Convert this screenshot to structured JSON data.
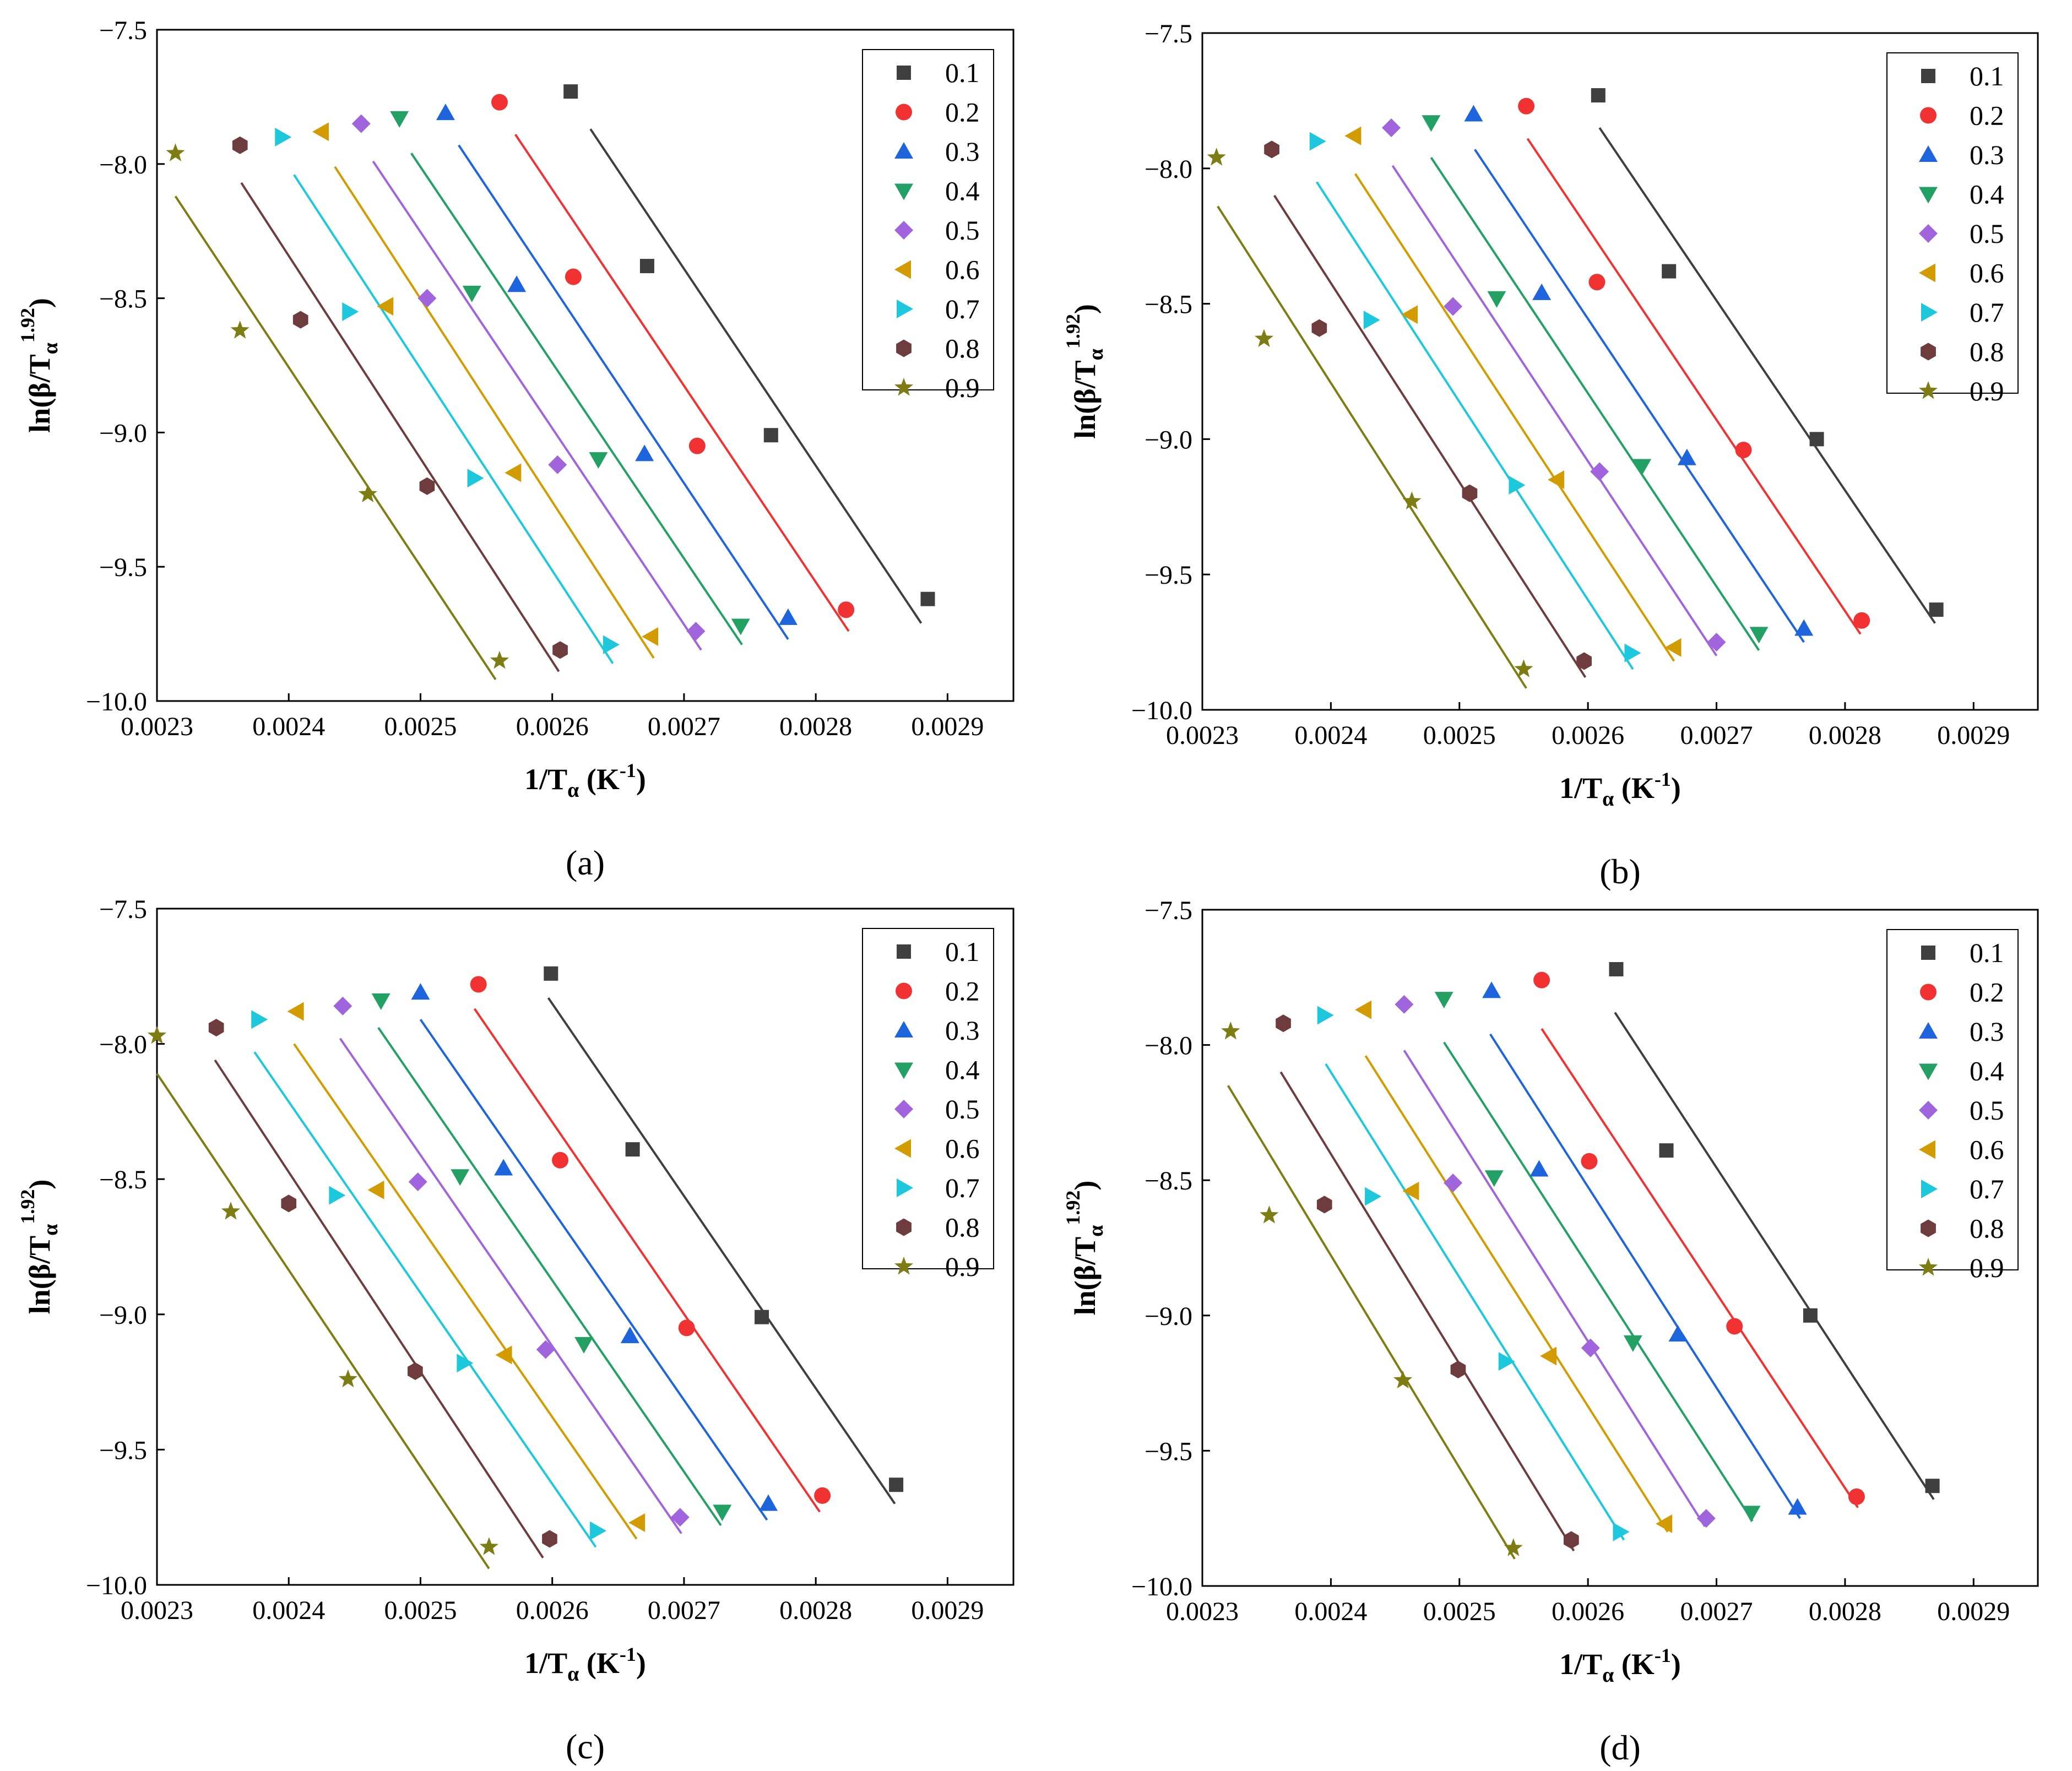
{
  "figure": {
    "subtitle_prefix": "(",
    "subtitle_suffix": ")"
  },
  "series_colors": [
    "#3f3f3f",
    "#f03232",
    "#1e64dc",
    "#23a064",
    "#a064dc",
    "#d29b00",
    "#1ec8dc",
    "#6e3c3c",
    "#7d7d14"
  ],
  "series_markers": [
    "square",
    "circle",
    "triangle-up",
    "triangle-down",
    "diamond",
    "triangle-left",
    "triangle-right",
    "hexagon",
    "star"
  ],
  "chart_data": [
    {
      "type": "scatter",
      "panel": "a",
      "xlabel_main": "1/T",
      "xlabel_sub": "α",
      "xlabel_unit": " (K",
      "xlabel_unit_sup": "-1",
      "xlabel_end": ")",
      "ylabel_main": "ln(β/T",
      "ylabel_sub": "α",
      "ylabel_sup": "1.92",
      "ylabel_end": ")",
      "xlim": [
        0.0023,
        0.00295
      ],
      "ylim": [
        -10.0,
        -7.5
      ],
      "xticks": [
        "0.0023",
        "0.0024",
        "0.0025",
        "0.0026",
        "0.0027",
        "0.0028",
        "0.0029"
      ],
      "yticks": [
        "-7.5",
        "-8.0",
        "-8.5",
        "-9.0",
        "-9.5",
        "-10.0"
      ],
      "series": [
        {
          "name": "0.1",
          "x": [
            0.002614,
            0.002672,
            0.002766,
            0.002885
          ],
          "y": [
            -7.73,
            -8.38,
            -9.01,
            -9.62
          ],
          "fit": [
            [
              0.002629,
              -7.87
            ],
            [
              0.00288,
              -9.71
            ]
          ]
        },
        {
          "name": "0.2",
          "x": [
            0.00256,
            0.002616,
            0.00271,
            0.002823
          ],
          "y": [
            -7.77,
            -8.42,
            -9.05,
            -9.66
          ],
          "fit": [
            [
              0.002572,
              -7.89
            ],
            [
              0.002825,
              -9.74
            ]
          ]
        },
        {
          "name": "0.3",
          "x": [
            0.002519,
            0.002573,
            0.00267,
            0.002779
          ],
          "y": [
            -7.81,
            -8.45,
            -9.08,
            -9.69
          ],
          "fit": [
            [
              0.002529,
              -7.93
            ],
            [
              0.002779,
              -9.77
            ]
          ]
        },
        {
          "name": "0.4",
          "x": [
            0.002484,
            0.002539,
            0.002635,
            0.002743
          ],
          "y": [
            -7.83,
            -8.48,
            -9.1,
            -9.72
          ],
          "fit": [
            [
              0.002493,
              -7.96
            ],
            [
              0.002744,
              -9.79
            ]
          ]
        },
        {
          "name": "0.5",
          "x": [
            0.002455,
            0.002505,
            0.002604,
            0.002709
          ],
          "y": [
            -7.85,
            -8.5,
            -9.12,
            -9.74
          ],
          "fit": [
            [
              0.002464,
              -7.99
            ],
            [
              0.002713,
              -9.81
            ]
          ]
        },
        {
          "name": "0.6",
          "x": [
            0.002425,
            0.002474,
            0.002571,
            0.002675
          ],
          "y": [
            -7.88,
            -8.53,
            -9.15,
            -9.76
          ],
          "fit": [
            [
              0.002435,
              -8.01
            ],
            [
              0.002677,
              -9.84
            ]
          ]
        },
        {
          "name": "0.7",
          "x": [
            0.002395,
            0.002446,
            0.002541,
            0.002644
          ],
          "y": [
            -7.9,
            -8.55,
            -9.17,
            -9.79
          ],
          "fit": [
            [
              0.002404,
              -8.04
            ],
            [
              0.002646,
              -9.86
            ]
          ]
        },
        {
          "name": "0.8",
          "x": [
            0.002363,
            0.002409,
            0.002505,
            0.002606
          ],
          "y": [
            -7.93,
            -8.58,
            -9.2,
            -9.81
          ],
          "fit": [
            [
              0.002364,
              -8.07
            ],
            [
              0.002605,
              -9.89
            ]
          ]
        },
        {
          "name": "0.9",
          "x": [
            0.002314,
            0.002363,
            0.00246,
            0.00256
          ],
          "y": [
            -7.96,
            -8.62,
            -9.23,
            -9.85
          ],
          "fit": [
            [
              0.002314,
              -8.12
            ],
            [
              0.002557,
              -9.92
            ]
          ]
        }
      ]
    },
    {
      "type": "scatter",
      "panel": "b",
      "xlabel_main": "1/T",
      "xlabel_sub": "α",
      "xlabel_unit": " (K",
      "xlabel_unit_sup": "-1",
      "xlabel_end": ")",
      "ylabel_main": "ln(β/T",
      "ylabel_sub": "α",
      "ylabel_sup": "1.92",
      "ylabel_end": ")",
      "xlim": [
        0.0023,
        0.00295
      ],
      "ylim": [
        -10.0,
        -7.5
      ],
      "xticks": [
        "0.0023",
        "0.0024",
        "0.0025",
        "0.0026",
        "0.0027",
        "0.0028",
        "0.0029"
      ],
      "yticks": [
        "-7.5",
        "-8.0",
        "-8.5",
        "-9.0",
        "-9.5",
        "-10.0"
      ],
      "series": [
        {
          "name": "0.1",
          "x": [
            0.002608,
            0.002663,
            0.002778,
            0.002871
          ],
          "y": [
            -7.73,
            -8.38,
            -9.0,
            -9.63
          ],
          "fit": [
            [
              0.002609,
              -7.85
            ],
            [
              0.00287,
              -9.68
            ]
          ]
        },
        {
          "name": "0.2",
          "x": [
            0.002552,
            0.002607,
            0.002721,
            0.002813
          ],
          "y": [
            -7.77,
            -8.42,
            -9.04,
            -9.67
          ],
          "fit": [
            [
              0.002553,
              -7.89
            ],
            [
              0.002812,
              -9.72
            ]
          ]
        },
        {
          "name": "0.3",
          "x": [
            0.002511,
            0.002564,
            0.002677,
            0.002768
          ],
          "y": [
            -7.8,
            -8.46,
            -9.07,
            -9.7
          ],
          "fit": [
            [
              0.002512,
              -7.93
            ],
            [
              0.002768,
              -9.75
            ]
          ]
        },
        {
          "name": "0.4",
          "x": [
            0.002478,
            0.002529,
            0.002642,
            0.002733
          ],
          "y": [
            -7.83,
            -8.48,
            -9.1,
            -9.72
          ],
          "fit": [
            [
              0.002478,
              -7.96
            ],
            [
              0.002733,
              -9.78
            ]
          ]
        },
        {
          "name": "0.5",
          "x": [
            0.002447,
            0.002495,
            0.002609,
            0.0027
          ],
          "y": [
            -7.85,
            -8.51,
            -9.12,
            -9.75
          ],
          "fit": [
            [
              0.002448,
              -7.99
            ],
            [
              0.0027,
              -9.8
            ]
          ]
        },
        {
          "name": "0.6",
          "x": [
            0.002418,
            0.002462,
            0.002576,
            0.002667
          ],
          "y": [
            -7.88,
            -8.54,
            -9.15,
            -9.77
          ],
          "fit": [
            [
              0.002419,
              -8.02
            ],
            [
              0.002667,
              -9.82
            ]
          ]
        },
        {
          "name": "0.7",
          "x": [
            0.002389,
            0.002431,
            0.002544,
            0.002634
          ],
          "y": [
            -7.9,
            -8.56,
            -9.17,
            -9.79
          ],
          "fit": [
            [
              0.002389,
              -8.05
            ],
            [
              0.002635,
              -9.85
            ]
          ]
        },
        {
          "name": "0.8",
          "x": [
            0.002354,
            0.002391,
            0.002508,
            0.002597
          ],
          "y": [
            -7.93,
            -8.59,
            -9.2,
            -9.82
          ],
          "fit": [
            [
              0.002356,
              -8.1
            ],
            [
              0.002598,
              -9.88
            ]
          ]
        },
        {
          "name": "0.9",
          "x": [
            0.002311,
            0.002348,
            0.002463,
            0.00255
          ],
          "y": [
            -7.96,
            -8.63,
            -9.23,
            -9.85
          ],
          "fit": [
            [
              0.002312,
              -8.14
            ],
            [
              0.002552,
              -9.92
            ]
          ]
        }
      ]
    },
    {
      "type": "scatter",
      "panel": "c",
      "xlabel_main": "1/T",
      "xlabel_sub": "α",
      "xlabel_unit": " (K",
      "xlabel_unit_sup": "-1",
      "xlabel_end": ")",
      "ylabel_main": "ln(β/T",
      "ylabel_sub": "α",
      "ylabel_sup": "1.92",
      "ylabel_end": ")",
      "xlim": [
        0.0023,
        0.00295
      ],
      "ylim": [
        -10.0,
        -7.5
      ],
      "xticks": [
        "0.0023",
        "0.0024",
        "0.0025",
        "0.0026",
        "0.0027",
        "0.0028",
        "0.0029"
      ],
      "yticks": [
        "-7.5",
        "-8.0",
        "-8.5",
        "-9.0",
        "-9.5",
        "-10.0"
      ],
      "series": [
        {
          "name": "0.1",
          "x": [
            0.002599,
            0.002661,
            0.002759,
            0.002861
          ],
          "y": [
            -7.74,
            -8.39,
            -9.01,
            -9.63
          ],
          "fit": [
            [
              0.002597,
              -7.83
            ],
            [
              0.00286,
              -9.7
            ]
          ]
        },
        {
          "name": "0.2",
          "x": [
            0.002544,
            0.002606,
            0.002702,
            0.002805
          ],
          "y": [
            -7.78,
            -8.43,
            -9.05,
            -9.67
          ],
          "fit": [
            [
              0.002541,
              -7.87
            ],
            [
              0.002803,
              -9.73
            ]
          ]
        },
        {
          "name": "0.3",
          "x": [
            0.0025,
            0.002563,
            0.002659,
            0.002764
          ],
          "y": [
            -7.81,
            -8.46,
            -9.08,
            -9.7
          ],
          "fit": [
            [
              0.0025,
              -7.91
            ],
            [
              0.002763,
              -9.76
            ]
          ]
        },
        {
          "name": "0.4",
          "x": [
            0.00247,
            0.00253,
            0.002624,
            0.002729
          ],
          "y": [
            -7.84,
            -8.49,
            -9.11,
            -9.73
          ],
          "fit": [
            [
              0.002468,
              -7.94
            ],
            [
              0.002728,
              -9.78
            ]
          ]
        },
        {
          "name": "0.5",
          "x": [
            0.002441,
            0.002498,
            0.002595,
            0.002697
          ],
          "y": [
            -7.86,
            -8.51,
            -9.13,
            -9.75
          ],
          "fit": [
            [
              0.002439,
              -7.98
            ],
            [
              0.002698,
              -9.81
            ]
          ]
        },
        {
          "name": "0.6",
          "x": [
            0.002406,
            0.002467,
            0.002564,
            0.002665
          ],
          "y": [
            -7.88,
            -8.54,
            -9.15,
            -9.77
          ],
          "fit": [
            [
              0.002404,
              -8.0
            ],
            [
              0.002664,
              -9.83
            ]
          ]
        },
        {
          "name": "0.7",
          "x": [
            0.002377,
            0.002436,
            0.002533,
            0.002634
          ],
          "y": [
            -7.91,
            -8.56,
            -9.18,
            -9.8
          ],
          "fit": [
            [
              0.002374,
              -8.03
            ],
            [
              0.002633,
              -9.86
            ]
          ]
        },
        {
          "name": "0.8",
          "x": [
            0.002345,
            0.0024,
            0.002496,
            0.002598
          ],
          "y": [
            -7.94,
            -8.59,
            -9.21,
            -9.83
          ],
          "fit": [
            [
              0.002344,
              -8.06
            ],
            [
              0.002593,
              -9.9
            ]
          ]
        },
        {
          "name": "0.9",
          "x": [
            0.0023,
            0.002356,
            0.002445,
            0.002552
          ],
          "y": [
            -7.97,
            -8.62,
            -9.24,
            -9.86
          ],
          "fit": [
            [
              0.0023,
              -8.11
            ],
            [
              0.002552,
              -9.94
            ]
          ]
        }
      ]
    },
    {
      "type": "scatter",
      "panel": "d",
      "xlabel_main": "1/T",
      "xlabel_sub": "α",
      "xlabel_unit": " (K",
      "xlabel_unit_sup": "-1",
      "xlabel_end": ")",
      "ylabel_main": "ln(β/T",
      "ylabel_sub": "α",
      "ylabel_sup": "1.92",
      "ylabel_end": ")",
      "xlim": [
        0.0023,
        0.00295
      ],
      "ylim": [
        -10.0,
        -7.5
      ],
      "xticks": [
        "0.0023",
        "0.0024",
        "0.0025",
        "0.0026",
        "0.0027",
        "0.0028",
        "0.0029"
      ],
      "yticks": [
        "-7.5",
        "-8.0",
        "-8.5",
        "-9.0",
        "-9.5",
        "-10.0"
      ],
      "series": [
        {
          "name": "0.1",
          "x": [
            0.002622,
            0.002661,
            0.002773,
            0.002868
          ],
          "y": [
            -7.72,
            -8.39,
            -9.0,
            -9.63
          ],
          "fit": [
            [
              0.002621,
              -7.88
            ],
            [
              0.002869,
              -9.68
            ]
          ]
        },
        {
          "name": "0.2",
          "x": [
            0.002564,
            0.002601,
            0.002714,
            0.002809
          ],
          "y": [
            -7.76,
            -8.43,
            -9.04,
            -9.67
          ],
          "fit": [
            [
              0.002564,
              -7.94
            ],
            [
              0.00281,
              -9.71
            ]
          ]
        },
        {
          "name": "0.3",
          "x": [
            0.002525,
            0.002562,
            0.00267,
            0.002763
          ],
          "y": [
            -7.8,
            -8.46,
            -9.07,
            -9.71
          ],
          "fit": [
            [
              0.002524,
              -7.96
            ],
            [
              0.002765,
              -9.75
            ]
          ]
        },
        {
          "name": "0.4",
          "x": [
            0.002488,
            0.002527,
            0.002635,
            0.002727
          ],
          "y": [
            -7.83,
            -8.49,
            -9.1,
            -9.73
          ],
          "fit": [
            [
              0.002488,
              -7.99
            ],
            [
              0.002728,
              -9.76
            ]
          ]
        },
        {
          "name": "0.5",
          "x": [
            0.002457,
            0.002495,
            0.002602,
            0.002692
          ],
          "y": [
            -7.85,
            -8.51,
            -9.12,
            -9.75
          ],
          "fit": [
            [
              0.002457,
              -8.02
            ],
            [
              0.002691,
              -9.78
            ]
          ]
        },
        {
          "name": "0.6",
          "x": [
            0.002426,
            0.002463,
            0.00257,
            0.00266
          ],
          "y": [
            -7.87,
            -8.54,
            -9.15,
            -9.77
          ],
          "fit": [
            [
              0.002427,
              -8.04
            ],
            [
              0.002662,
              -9.8
            ]
          ]
        },
        {
          "name": "0.7",
          "x": [
            0.002395,
            0.002432,
            0.002536,
            0.002625
          ],
          "y": [
            -7.89,
            -8.56,
            -9.17,
            -9.8
          ],
          "fit": [
            [
              0.002396,
              -8.07
            ],
            [
              0.002628,
              -9.83
            ]
          ]
        },
        {
          "name": "0.8",
          "x": [
            0.002363,
            0.002395,
            0.002499,
            0.002587
          ],
          "y": [
            -7.92,
            -8.59,
            -9.2,
            -9.83
          ],
          "fit": [
            [
              0.002361,
              -8.1
            ],
            [
              0.002589,
              -9.87
            ]
          ]
        },
        {
          "name": "0.9",
          "x": [
            0.002322,
            0.002352,
            0.002456,
            0.002542
          ],
          "y": [
            -7.95,
            -8.63,
            -9.24,
            -9.86
          ],
          "fit": [
            [
              0.00232,
              -8.15
            ],
            [
              0.002543,
              -9.9
            ]
          ]
        }
      ]
    }
  ]
}
